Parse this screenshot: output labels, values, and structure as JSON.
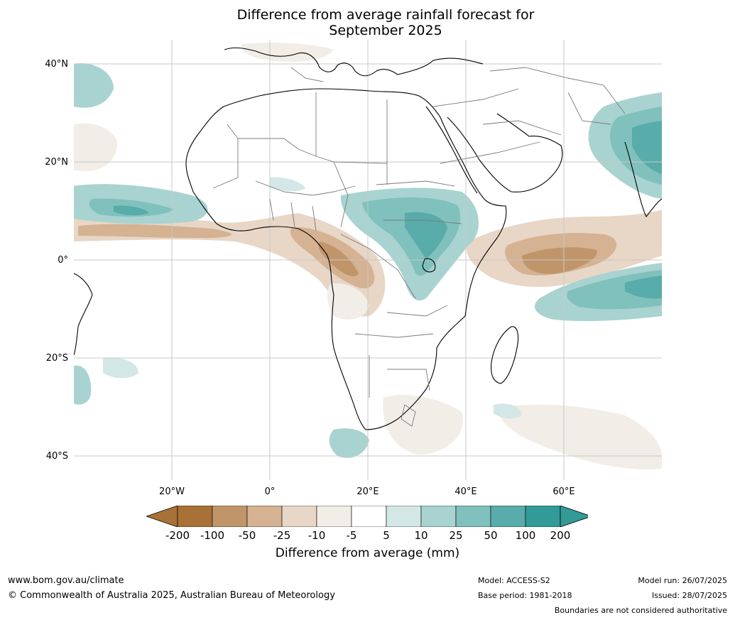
{
  "title": {
    "line1": "Difference from average rainfall forecast for",
    "line2": "September 2025"
  },
  "map": {
    "lat_labels": [
      "40°N",
      "20°N",
      "0°",
      "20°S",
      "40°S"
    ],
    "lon_labels": [
      "20°W",
      "0°",
      "20°E",
      "40°E",
      "60°E"
    ],
    "gridlines": true
  },
  "colorbar": {
    "ticks": [
      "-200",
      "-100",
      "-50",
      "-25",
      "-10",
      "-5",
      "5",
      "10",
      "25",
      "50",
      "100",
      "200"
    ],
    "colors": [
      "#a87137",
      "#a87137",
      "#c0956a",
      "#d4b292",
      "#e8d6c6",
      "#f2ede6",
      "#ffffff",
      "#d3e7e6",
      "#a8d3d1",
      "#80c0bd",
      "#58aca9",
      "#329a97",
      "#329a97"
    ],
    "label": "Difference from average (mm)"
  },
  "footer": {
    "website": "www.bom.gov.au/climate",
    "copyright": "© Commonwealth of Australia 2025, Australian Bureau of Meteorology",
    "model": "Model: ACCESS-S2",
    "base_period": "Base period: 1981-2018",
    "model_run": "Model run: 26/07/2025",
    "issued": "Issued: 28/07/2025",
    "disclaimer": "Boundaries are not considered authoritative"
  }
}
